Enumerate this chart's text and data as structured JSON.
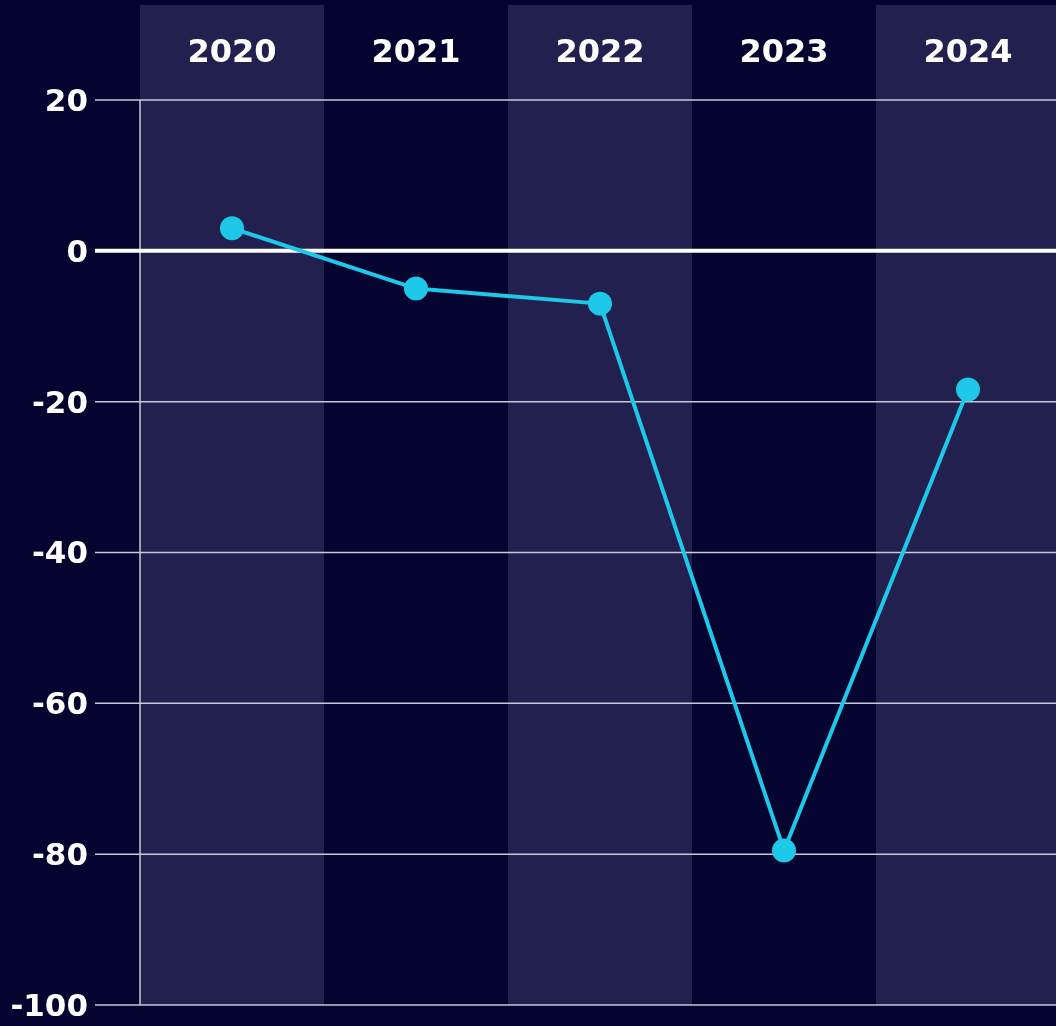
{
  "chart_data": {
    "type": "line",
    "categories": [
      "2020",
      "2021",
      "2022",
      "2023",
      "2024"
    ],
    "series": [
      {
        "color": "#1ec8e8",
        "values": [
          3,
          -5,
          -7,
          -79.5,
          -18.4
        ]
      }
    ],
    "ylim": [
      -100,
      20
    ],
    "yticks": [
      -100,
      -80,
      -60,
      -40,
      -20,
      0,
      20
    ],
    "grid": "y",
    "marker": "circle",
    "line_style": "solid",
    "ref_lines": [
      {
        "axis": "y",
        "value": 0,
        "color": "#ffffff"
      }
    ],
    "bands": [
      {
        "axis": "x",
        "from": "2020",
        "to": "2020",
        "color": "#22204f"
      },
      {
        "axis": "x",
        "from": "2022",
        "to": "2022",
        "color": "#22204f"
      },
      {
        "axis": "x",
        "from": "2024",
        "to": "2024",
        "color": "#22204f"
      }
    ]
  }
}
